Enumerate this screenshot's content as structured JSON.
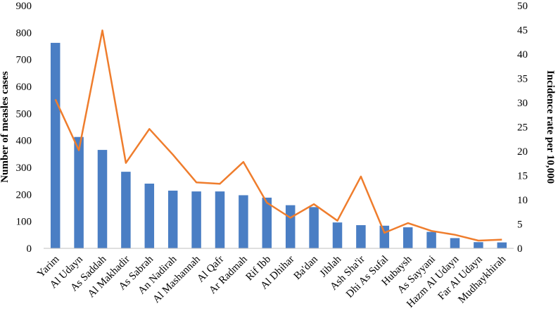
{
  "chart_data": {
    "type": "bar",
    "title": "",
    "xlabel": "",
    "ylabel": "Number of measles cases",
    "y2label": "Incidence rate per 10,000",
    "ylim": [
      0,
      900
    ],
    "y2lim": [
      0,
      50
    ],
    "yticks": [
      0,
      100,
      200,
      300,
      400,
      500,
      600,
      700,
      800,
      900
    ],
    "y2ticks": [
      0,
      5,
      10,
      15,
      20,
      25,
      30,
      35,
      40,
      45,
      50
    ],
    "grid": false,
    "legend": "none",
    "categories": [
      "Yarim",
      "Al Udayn",
      "As Saddah",
      "Al Makhadir",
      "As Sabrah",
      "An Nadirah",
      "Al Mashannah",
      "Al Qafr",
      "Ar Radmah",
      "Rif Ibb",
      "Al Dhihar",
      "Ba'dan",
      "Jiblah",
      "Ash Sha'ir",
      "Dhi As Sufal",
      "Hubaysh",
      "As Sayyani",
      "Hazm Al Udayn",
      "Far Al Udayn",
      "Mudhaykhirah"
    ],
    "series": [
      {
        "type": "bar",
        "axis": "left",
        "color": "#4a7ec4",
        "values": [
          762,
          413,
          365,
          284,
          240,
          214,
          211,
          211,
          197,
          188,
          160,
          153,
          96,
          86,
          84,
          78,
          61,
          38,
          23,
          22
        ]
      },
      {
        "type": "line",
        "axis": "right",
        "color": "#ef7d2d",
        "values": [
          30.7,
          20.2,
          44.9,
          17.6,
          24.6,
          19.3,
          13.6,
          13.3,
          17.8,
          9.4,
          6.3,
          9.1,
          5.7,
          14.8,
          3.2,
          5.2,
          3.6,
          2.8,
          1.6,
          1.8
        ]
      }
    ]
  }
}
